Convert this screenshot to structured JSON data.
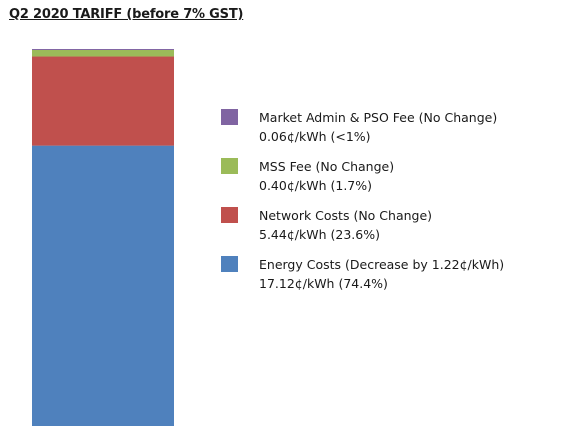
{
  "chart_data": {
    "type": "bar",
    "stacked": true,
    "title": "Q2 2020 TARIFF (before 7% GST)",
    "unit": "¢/kWh",
    "categories": [
      ""
    ],
    "series": [
      {
        "name": "Energy Costs (Decrease by 1.22¢/kWh)",
        "values": [
          17.12
        ],
        "label": "17.12¢/kWh (74.4%)",
        "color": "#4F81BD"
      },
      {
        "name": "Network Costs (No Change)",
        "values": [
          5.44
        ],
        "label": "5.44¢/kWh (23.6%)",
        "color": "#C0504D"
      },
      {
        "name": "MSS Fee (No Change)",
        "values": [
          0.4
        ],
        "label": "0.40¢/kWh (1.7%)",
        "color": "#9BBB59"
      },
      {
        "name": "Market Admin & PSO Fee (No Change)",
        "values": [
          0.06
        ],
        "label": "0.06¢/kWh (<1%)",
        "color": "#8064A2"
      }
    ],
    "xlabel": "",
    "ylabel": "",
    "grid": false,
    "legend_position": "right"
  }
}
